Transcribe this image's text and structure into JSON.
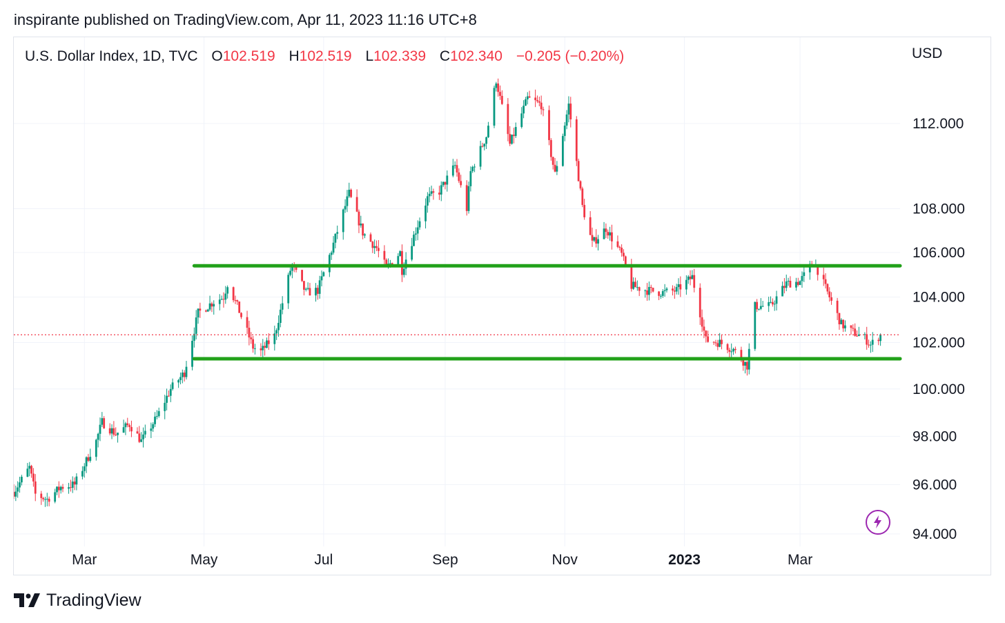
{
  "header": {
    "publish_text": "inspirante published on TradingView.com, Apr 11, 2023 11:16 UTC+8"
  },
  "legend": {
    "symbol": "U.S. Dollar Index, 1D, TVC",
    "open_label": "O",
    "open": "102.519",
    "high_label": "H",
    "high": "102.519",
    "low_label": "L",
    "low": "102.339",
    "close_label": "C",
    "close": "102.340",
    "change": "−0.205 (−0.20%)"
  },
  "currency": "USD",
  "footer": {
    "brand": "TradingView"
  },
  "colors": {
    "up": "#089981",
    "down": "#f23645",
    "support_resistance": "#22a11a",
    "price_line": "#f23645",
    "grid": "#f0f3fa",
    "accent": "#9c27b0"
  },
  "icons": {
    "brand": "tradingview-logo-icon",
    "bolt": "lightning-bolt-icon"
  },
  "chart_data": {
    "type": "candlestick",
    "title": "U.S. Dollar Index, 1D, TVC",
    "x_axis": {
      "type": "date",
      "range": [
        "2022-01-24",
        "2023-04-21"
      ],
      "ticks": [
        {
          "label": "Mar",
          "date": "2022-03-01"
        },
        {
          "label": "May",
          "date": "2022-05-01"
        },
        {
          "label": "Jul",
          "date": "2022-07-01"
        },
        {
          "label": "Sep",
          "date": "2022-09-01"
        },
        {
          "label": "Nov",
          "date": "2022-11-01"
        },
        {
          "label": "2023",
          "date": "2023-01-01",
          "bold": true
        },
        {
          "label": "Mar",
          "date": "2023-03-01"
        }
      ]
    },
    "y_axis": {
      "scale": "log",
      "range": [
        93.5,
        116.2
      ],
      "ticks": [
        "94.000",
        "96.000",
        "98.000",
        "100.000",
        "102.000",
        "104.000",
        "106.000",
        "108.000",
        "112.000"
      ]
    },
    "grid": true,
    "price_path": [
      [
        "2022-01-24",
        95.7
      ],
      [
        "2022-02-01",
        96.7
      ],
      [
        "2022-02-04",
        95.6
      ],
      [
        "2022-02-10",
        95.4
      ],
      [
        "2022-02-17",
        95.9
      ],
      [
        "2022-02-24",
        96.0
      ],
      [
        "2022-03-07",
        97.8
      ],
      [
        "2022-03-10",
        98.6
      ],
      [
        "2022-03-17",
        98.1
      ],
      [
        "2022-03-24",
        98.5
      ],
      [
        "2022-03-30",
        97.8
      ],
      [
        "2022-04-07",
        98.8
      ],
      [
        "2022-04-14",
        100.0
      ],
      [
        "2022-04-21",
        100.7
      ],
      [
        "2022-04-28",
        103.3
      ],
      [
        "2022-05-06",
        103.8
      ],
      [
        "2022-05-11",
        104.0
      ],
      [
        "2022-05-13",
        104.6
      ],
      [
        "2022-05-18",
        103.6
      ],
      [
        "2022-05-26",
        101.8
      ],
      [
        "2022-05-30",
        101.6
      ],
      [
        "2022-06-06",
        102.3
      ],
      [
        "2022-06-14",
        105.2
      ],
      [
        "2022-06-15",
        105.4
      ],
      [
        "2022-06-22",
        104.2
      ],
      [
        "2022-06-28",
        104.3
      ],
      [
        "2022-07-05",
        106.1
      ],
      [
        "2022-07-14",
        108.7
      ],
      [
        "2022-07-21",
        106.9
      ],
      [
        "2022-07-28",
        106.2
      ],
      [
        "2022-08-02",
        105.3
      ],
      [
        "2022-08-09",
        106.0
      ],
      [
        "2022-08-10",
        105.2
      ],
      [
        "2022-08-15",
        106.5
      ],
      [
        "2022-08-23",
        108.5
      ],
      [
        "2022-08-29",
        108.8
      ],
      [
        "2022-09-06",
        110.0
      ],
      [
        "2022-09-12",
        108.0
      ],
      [
        "2022-09-14",
        109.7
      ],
      [
        "2022-09-22",
        111.4
      ],
      [
        "2022-09-27",
        114.1
      ],
      [
        "2022-10-04",
        111.0
      ],
      [
        "2022-10-13",
        113.2
      ],
      [
        "2022-10-20",
        112.9
      ],
      [
        "2022-10-27",
        109.6
      ],
      [
        "2022-11-03",
        112.9
      ],
      [
        "2022-11-10",
        108.1
      ],
      [
        "2022-11-15",
        106.4
      ],
      [
        "2022-11-22",
        107.1
      ],
      [
        "2022-11-30",
        105.9
      ],
      [
        "2022-12-05",
        104.5
      ],
      [
        "2022-12-13",
        104.3
      ],
      [
        "2022-12-21",
        104.2
      ],
      [
        "2022-12-28",
        104.3
      ],
      [
        "2023-01-05",
        104.9
      ],
      [
        "2023-01-12",
        102.1
      ],
      [
        "2023-01-19",
        102.0
      ],
      [
        "2023-01-26",
        101.7
      ],
      [
        "2023-02-02",
        101.0
      ],
      [
        "2023-02-06",
        103.6
      ],
      [
        "2023-02-14",
        103.6
      ],
      [
        "2023-02-22",
        104.6
      ],
      [
        "2023-03-01",
        104.7
      ],
      [
        "2023-03-08",
        105.6
      ],
      [
        "2023-03-15",
        104.2
      ],
      [
        "2023-03-22",
        102.8
      ],
      [
        "2023-03-27",
        102.5
      ],
      [
        "2023-04-03",
        102.2
      ],
      [
        "2023-04-06",
        101.9
      ],
      [
        "2023-04-11",
        102.34
      ]
    ],
    "horizontal_lines": [
      {
        "value": 105.4,
        "from": "2022-04-26",
        "to": "2023-04-21",
        "color": "#22a11a"
      },
      {
        "value": 101.3,
        "from": "2022-04-26",
        "to": "2023-04-21",
        "color": "#22a11a"
      }
    ],
    "last_price": {
      "value": 102.34,
      "style": "dotted"
    }
  }
}
